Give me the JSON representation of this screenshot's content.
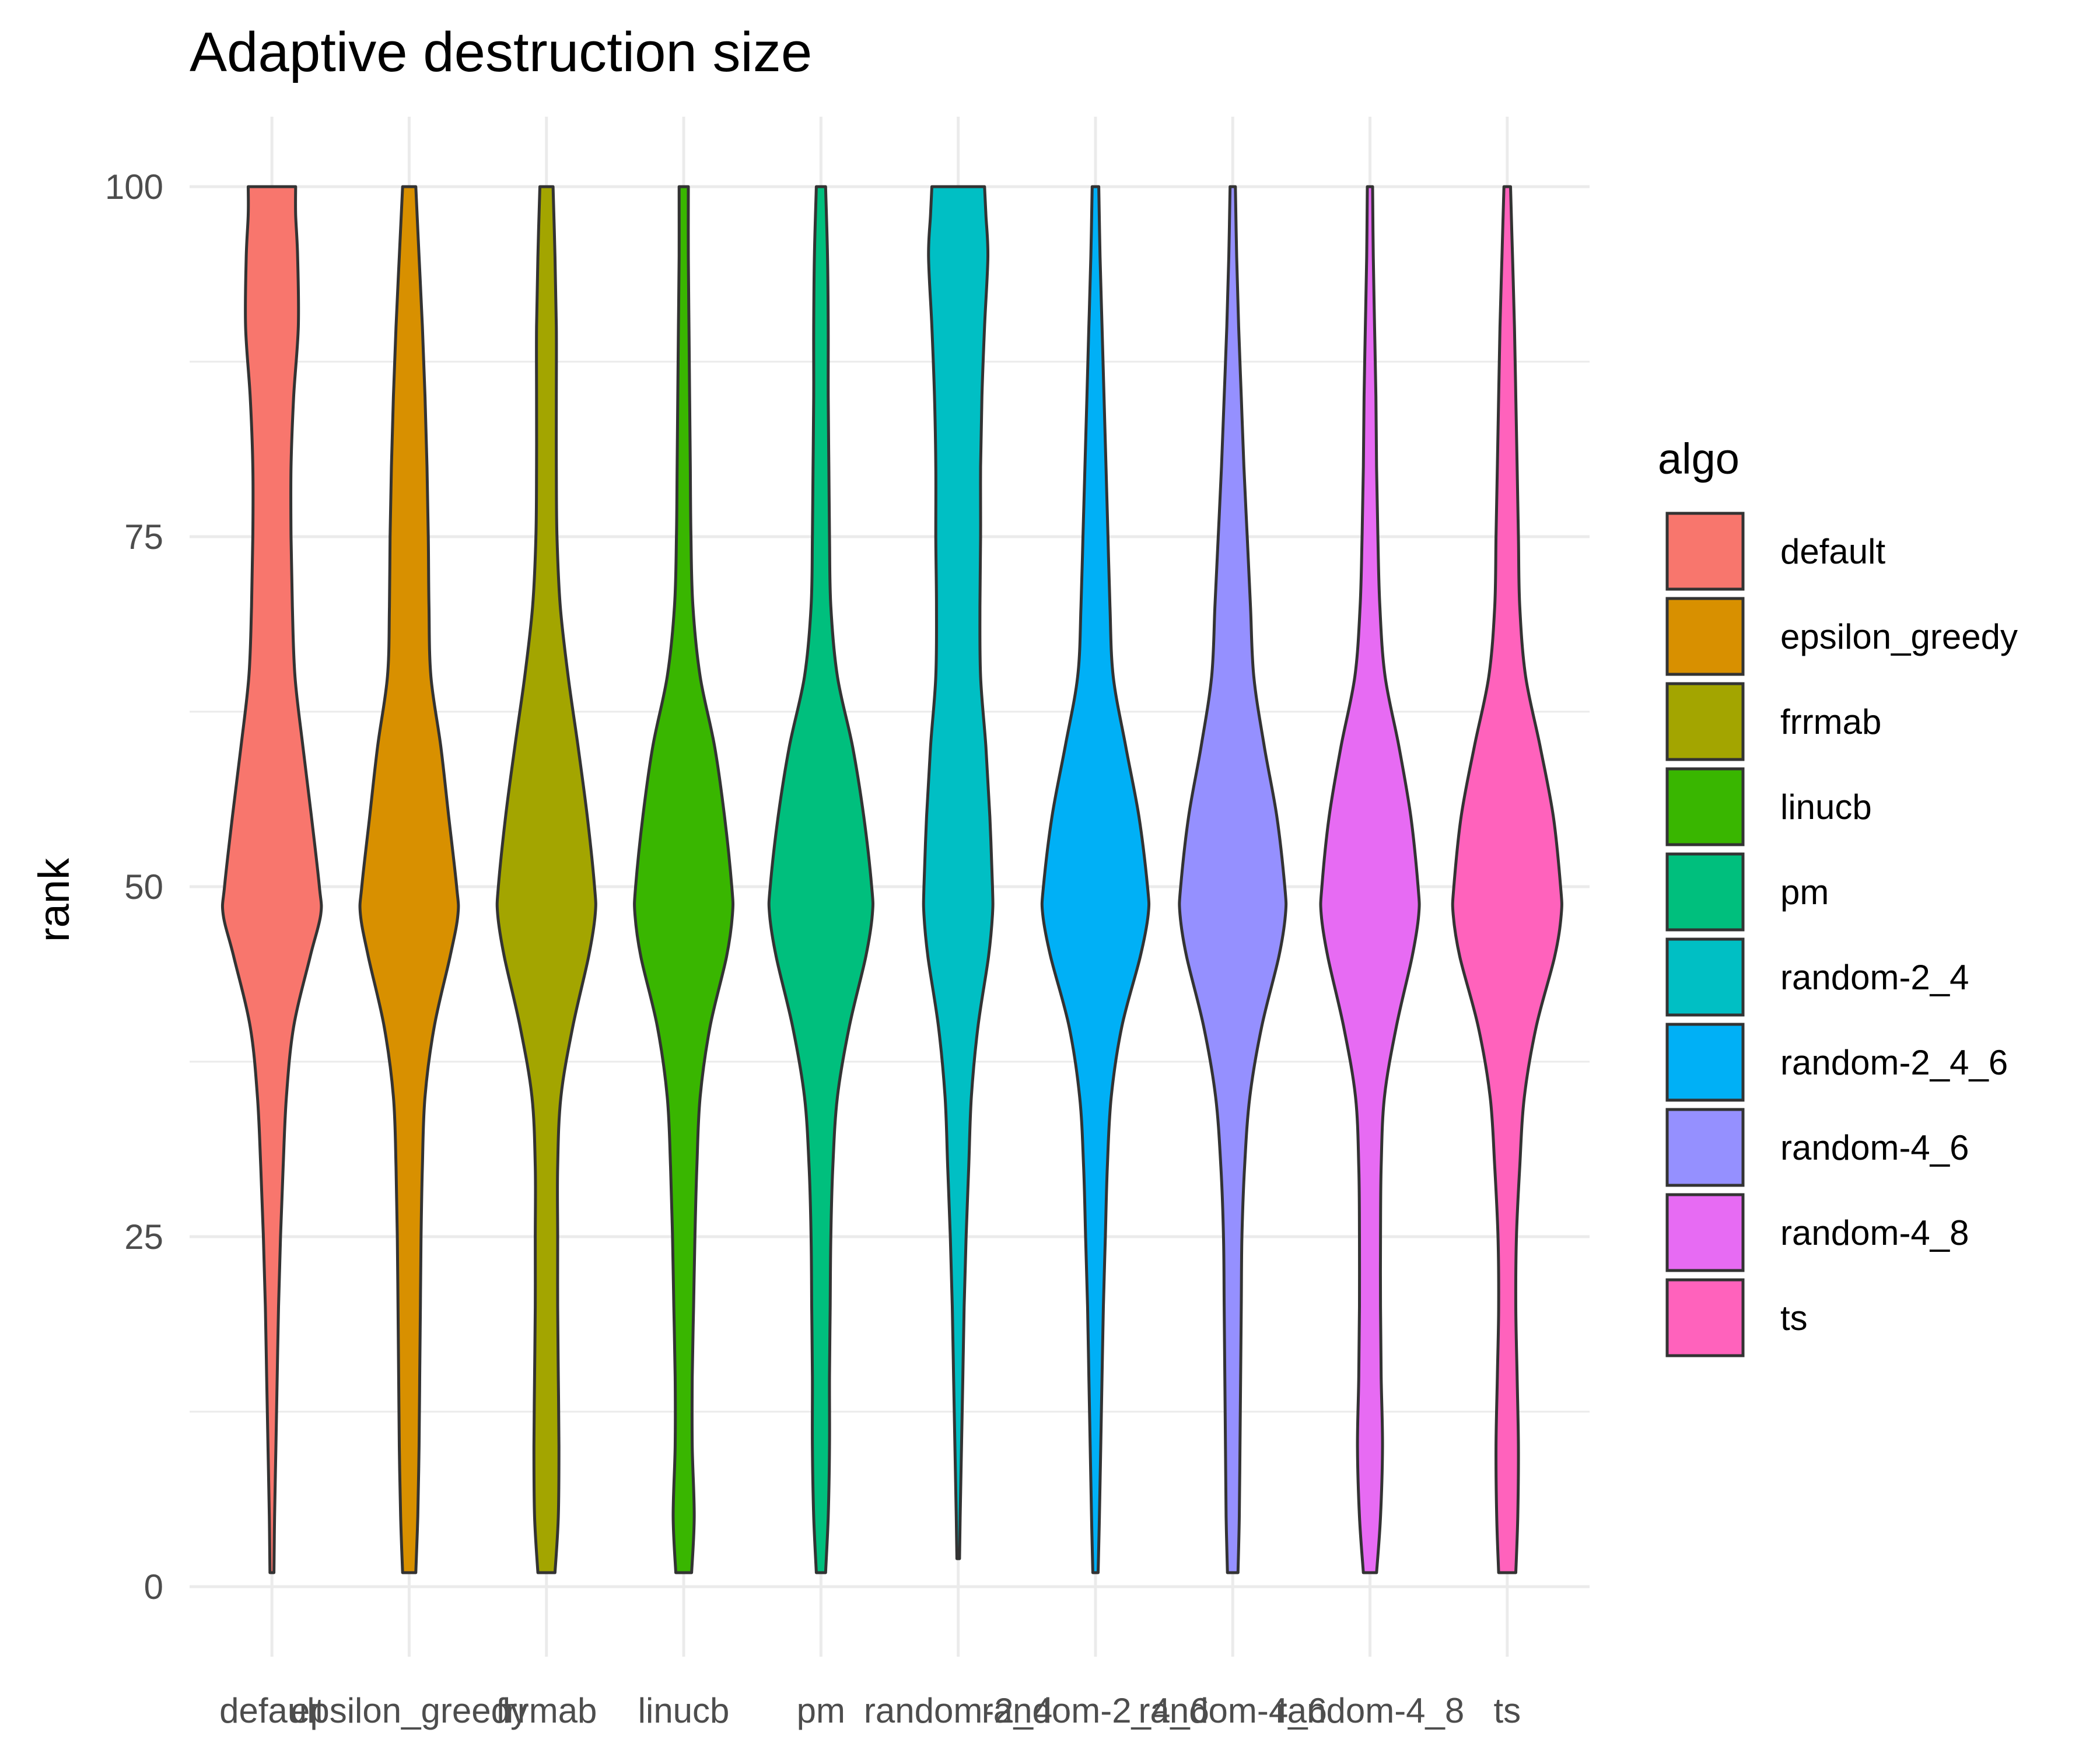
{
  "chart_data": {
    "type": "violin",
    "title": "Adaptive destruction size",
    "xlabel": "",
    "ylabel": "rank",
    "ylim": [
      -5,
      105
    ],
    "yticks": [
      0,
      25,
      50,
      75,
      100
    ],
    "grid": true,
    "legend": {
      "title": "algo",
      "position": "right"
    },
    "categories": [
      "default",
      "epsilon_greedy",
      "frrmab",
      "linucb",
      "pm",
      "random-2_4",
      "random-2_4_6",
      "random-4_6",
      "random-4_8",
      "ts"
    ],
    "series": [
      {
        "name": "default",
        "color": "#F8766D",
        "profile": [
          [
            1,
            0.03
          ],
          [
            5,
            0.04
          ],
          [
            10,
            0.06
          ],
          [
            15,
            0.08
          ],
          [
            20,
            0.1
          ],
          [
            25,
            0.13
          ],
          [
            30,
            0.17
          ],
          [
            35,
            0.22
          ],
          [
            40,
            0.33
          ],
          [
            45,
            0.58
          ],
          [
            48,
            0.74
          ],
          [
            50,
            0.72
          ],
          [
            55,
            0.6
          ],
          [
            60,
            0.47
          ],
          [
            65,
            0.35
          ],
          [
            70,
            0.31
          ],
          [
            75,
            0.29
          ],
          [
            80,
            0.29
          ],
          [
            85,
            0.33
          ],
          [
            90,
            0.4
          ],
          [
            95,
            0.39
          ],
          [
            98,
            0.36
          ],
          [
            100,
            0.36
          ]
        ]
      },
      {
        "name": "epsilon_greedy",
        "color": "#D89000",
        "profile": [
          [
            1,
            0.1
          ],
          [
            5,
            0.13
          ],
          [
            10,
            0.15
          ],
          [
            15,
            0.16
          ],
          [
            20,
            0.17
          ],
          [
            25,
            0.18
          ],
          [
            30,
            0.2
          ],
          [
            35,
            0.24
          ],
          [
            40,
            0.38
          ],
          [
            45,
            0.62
          ],
          [
            48,
            0.74
          ],
          [
            50,
            0.72
          ],
          [
            55,
            0.6
          ],
          [
            60,
            0.48
          ],
          [
            65,
            0.33
          ],
          [
            70,
            0.3
          ],
          [
            75,
            0.29
          ],
          [
            80,
            0.27
          ],
          [
            85,
            0.24
          ],
          [
            90,
            0.2
          ],
          [
            95,
            0.15
          ],
          [
            100,
            0.1
          ]
        ]
      },
      {
        "name": "frrmab",
        "color": "#A3A500",
        "profile": [
          [
            1,
            0.13
          ],
          [
            5,
            0.18
          ],
          [
            10,
            0.19
          ],
          [
            15,
            0.18
          ],
          [
            20,
            0.17
          ],
          [
            25,
            0.17
          ],
          [
            30,
            0.17
          ],
          [
            35,
            0.22
          ],
          [
            40,
            0.4
          ],
          [
            45,
            0.64
          ],
          [
            48,
            0.74
          ],
          [
            50,
            0.73
          ],
          [
            55,
            0.62
          ],
          [
            60,
            0.48
          ],
          [
            65,
            0.33
          ],
          [
            70,
            0.21
          ],
          [
            75,
            0.16
          ],
          [
            80,
            0.15
          ],
          [
            85,
            0.15
          ],
          [
            90,
            0.15
          ],
          [
            95,
            0.13
          ],
          [
            100,
            0.1
          ]
        ]
      },
      {
        "name": "linucb",
        "color": "#39B600",
        "profile": [
          [
            1,
            0.12
          ],
          [
            5,
            0.16
          ],
          [
            10,
            0.13
          ],
          [
            15,
            0.13
          ],
          [
            20,
            0.15
          ],
          [
            25,
            0.17
          ],
          [
            30,
            0.2
          ],
          [
            35,
            0.25
          ],
          [
            40,
            0.4
          ],
          [
            45,
            0.65
          ],
          [
            48,
            0.74
          ],
          [
            50,
            0.73
          ],
          [
            55,
            0.62
          ],
          [
            60,
            0.47
          ],
          [
            65,
            0.25
          ],
          [
            70,
            0.14
          ],
          [
            75,
            0.11
          ],
          [
            80,
            0.1
          ],
          [
            85,
            0.09
          ],
          [
            90,
            0.08
          ],
          [
            95,
            0.07
          ],
          [
            100,
            0.07
          ]
        ]
      },
      {
        "name": "pm",
        "color": "#00BF7D",
        "profile": [
          [
            1,
            0.07
          ],
          [
            5,
            0.11
          ],
          [
            10,
            0.13
          ],
          [
            15,
            0.13
          ],
          [
            20,
            0.14
          ],
          [
            25,
            0.15
          ],
          [
            30,
            0.18
          ],
          [
            35,
            0.25
          ],
          [
            40,
            0.43
          ],
          [
            45,
            0.68
          ],
          [
            48,
            0.78
          ],
          [
            50,
            0.77
          ],
          [
            55,
            0.65
          ],
          [
            60,
            0.48
          ],
          [
            65,
            0.25
          ],
          [
            70,
            0.15
          ],
          [
            75,
            0.13
          ],
          [
            80,
            0.12
          ],
          [
            85,
            0.11
          ],
          [
            90,
            0.11
          ],
          [
            95,
            0.1
          ],
          [
            100,
            0.07
          ]
        ]
      },
      {
        "name": "random-2_4",
        "color": "#00BFC4",
        "profile": [
          [
            2,
            0.02
          ],
          [
            5,
            0.03
          ],
          [
            10,
            0.05
          ],
          [
            15,
            0.07
          ],
          [
            20,
            0.09
          ],
          [
            25,
            0.12
          ],
          [
            30,
            0.16
          ],
          [
            35,
            0.2
          ],
          [
            40,
            0.3
          ],
          [
            45,
            0.46
          ],
          [
            48,
            0.52
          ],
          [
            50,
            0.52
          ],
          [
            55,
            0.48
          ],
          [
            60,
            0.42
          ],
          [
            65,
            0.34
          ],
          [
            70,
            0.33
          ],
          [
            75,
            0.34
          ],
          [
            80,
            0.34
          ],
          [
            85,
            0.36
          ],
          [
            90,
            0.4
          ],
          [
            95,
            0.45
          ],
          [
            98,
            0.42
          ],
          [
            100,
            0.4
          ]
        ]
      },
      {
        "name": "random-2_4_6",
        "color": "#00B0F6",
        "profile": [
          [
            1,
            0.04
          ],
          [
            5,
            0.06
          ],
          [
            10,
            0.08
          ],
          [
            15,
            0.1
          ],
          [
            20,
            0.12
          ],
          [
            25,
            0.15
          ],
          [
            30,
            0.18
          ],
          [
            35,
            0.24
          ],
          [
            40,
            0.4
          ],
          [
            45,
            0.68
          ],
          [
            48,
            0.8
          ],
          [
            50,
            0.79
          ],
          [
            55,
            0.66
          ],
          [
            60,
            0.46
          ],
          [
            65,
            0.27
          ],
          [
            70,
            0.22
          ],
          [
            75,
            0.19
          ],
          [
            80,
            0.16
          ],
          [
            85,
            0.13
          ],
          [
            90,
            0.1
          ],
          [
            95,
            0.07
          ],
          [
            100,
            0.05
          ]
        ]
      },
      {
        "name": "random-4_6",
        "color": "#9590FF",
        "profile": [
          [
            1,
            0.08
          ],
          [
            5,
            0.1
          ],
          [
            10,
            0.11
          ],
          [
            15,
            0.12
          ],
          [
            20,
            0.13
          ],
          [
            25,
            0.14
          ],
          [
            30,
            0.18
          ],
          [
            35,
            0.26
          ],
          [
            40,
            0.44
          ],
          [
            45,
            0.7
          ],
          [
            48,
            0.8
          ],
          [
            50,
            0.79
          ],
          [
            55,
            0.67
          ],
          [
            60,
            0.48
          ],
          [
            65,
            0.32
          ],
          [
            70,
            0.27
          ],
          [
            75,
            0.22
          ],
          [
            80,
            0.17
          ],
          [
            85,
            0.13
          ],
          [
            90,
            0.09
          ],
          [
            95,
            0.06
          ],
          [
            100,
            0.04
          ]
        ]
      },
      {
        "name": "random-4_8",
        "color": "#E76BF3",
        "profile": [
          [
            1,
            0.1
          ],
          [
            5,
            0.16
          ],
          [
            10,
            0.19
          ],
          [
            15,
            0.17
          ],
          [
            20,
            0.16
          ],
          [
            25,
            0.16
          ],
          [
            30,
            0.17
          ],
          [
            35,
            0.22
          ],
          [
            40,
            0.4
          ],
          [
            45,
            0.64
          ],
          [
            48,
            0.74
          ],
          [
            50,
            0.73
          ],
          [
            55,
            0.62
          ],
          [
            60,
            0.44
          ],
          [
            65,
            0.23
          ],
          [
            70,
            0.15
          ],
          [
            75,
            0.12
          ],
          [
            80,
            0.1
          ],
          [
            85,
            0.09
          ],
          [
            90,
            0.07
          ],
          [
            95,
            0.05
          ],
          [
            100,
            0.04
          ]
        ]
      },
      {
        "name": "ts",
        "color": "#FF62BC",
        "profile": [
          [
            1,
            0.13
          ],
          [
            5,
            0.16
          ],
          [
            10,
            0.17
          ],
          [
            15,
            0.15
          ],
          [
            20,
            0.13
          ],
          [
            25,
            0.14
          ],
          [
            30,
            0.19
          ],
          [
            35,
            0.26
          ],
          [
            40,
            0.44
          ],
          [
            45,
            0.72
          ],
          [
            48,
            0.82
          ],
          [
            50,
            0.81
          ],
          [
            55,
            0.7
          ],
          [
            60,
            0.5
          ],
          [
            65,
            0.28
          ],
          [
            70,
            0.19
          ],
          [
            75,
            0.17
          ],
          [
            80,
            0.15
          ],
          [
            85,
            0.13
          ],
          [
            90,
            0.11
          ],
          [
            95,
            0.08
          ],
          [
            100,
            0.05
          ]
        ]
      }
    ]
  }
}
